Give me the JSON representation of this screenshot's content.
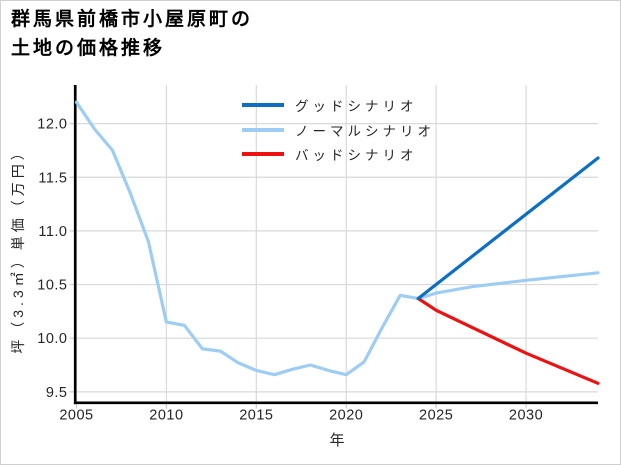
{
  "header": {
    "title": "群馬県前橋市小屋原町の\n土地の価格推移"
  },
  "legend": {
    "items": [
      {
        "id": "good",
        "label": "グッドシナリオ",
        "color": "#0c6fc4"
      },
      {
        "id": "normal",
        "label": "ノーマルシナリオ",
        "color": "#9ecdf4"
      },
      {
        "id": "bad",
        "label": "バッドシナリオ",
        "color": "#ee1111"
      }
    ]
  },
  "chart_data": {
    "type": "line",
    "title": "群馬県前橋市小屋原町の土地の価格推移",
    "xlabel": "年",
    "ylabel": "坪（3.3㎡）単価（万円）",
    "xlim": [
      2005,
      2034
    ],
    "ylim": [
      9.41,
      12.36
    ],
    "grid": true,
    "legend_position": "upper center",
    "xticks": [
      2005,
      2010,
      2015,
      2020,
      2025,
      2030
    ],
    "xtick_labels": [
      "2005",
      "2010",
      "2015",
      "2020",
      "2025",
      "2030"
    ],
    "yticks": [
      9.5,
      10.0,
      10.5,
      11.0,
      11.5,
      12.0
    ],
    "ytick_labels": [
      "9.5",
      "10.0",
      "10.5",
      "11.0",
      "11.5",
      "12.0"
    ],
    "style": {
      "grid_color": "#d9d9d9",
      "tick_color": "#cccccc",
      "tick_label_color": "#262626",
      "spine_color": "#000000",
      "line_width": 3.2
    },
    "series": [
      {
        "id": "history",
        "scenario": null,
        "color": "#9ecdf4",
        "x": [
          2005,
          2006,
          2007,
          2008,
          2009,
          2010,
          2011,
          2012,
          2013,
          2014,
          2015,
          2016,
          2017,
          2018,
          2019,
          2020,
          2021,
          2022,
          2023,
          2024
        ],
        "y": [
          12.2,
          11.95,
          11.75,
          11.35,
          10.9,
          10.15,
          10.12,
          9.9,
          9.88,
          9.77,
          9.7,
          9.66,
          9.71,
          9.75,
          9.7,
          9.66,
          9.78,
          10.1,
          10.4,
          10.37
        ]
      },
      {
        "id": "good",
        "scenario": "グッドシナリオ",
        "color": "#0c6fc4",
        "x": [
          2024,
          2034
        ],
        "y": [
          10.37,
          11.68
        ]
      },
      {
        "id": "normal",
        "scenario": "ノーマルシナリオ",
        "color": "#9ecdf4",
        "x": [
          2024,
          2025,
          2027,
          2030,
          2034
        ],
        "y": [
          10.37,
          10.42,
          10.48,
          10.54,
          10.61
        ]
      },
      {
        "id": "bad",
        "scenario": "バッドシナリオ",
        "color": "#ee1111",
        "x": [
          2024,
          2025,
          2030,
          2034
        ],
        "y": [
          10.37,
          10.26,
          9.86,
          9.58
        ]
      }
    ]
  }
}
